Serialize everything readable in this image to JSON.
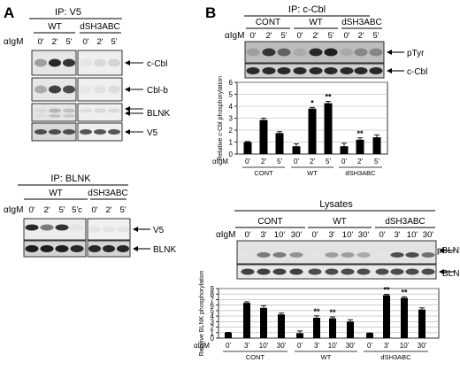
{
  "panel_a": {
    "letter": "A",
    "ip_v5": {
      "title": "IP: V5",
      "row_label": "αIgM",
      "groups": [
        {
          "label": "WT",
          "times": [
            "0'",
            "2'",
            "5'"
          ]
        },
        {
          "label": "dSH3ABC",
          "times": [
            "0'",
            "2'",
            "5'"
          ]
        }
      ],
      "blots": [
        {
          "label": "c-Cbl",
          "wt": [
            0.35,
            0.85,
            0.8
          ],
          "mut": [
            0.05,
            0.1,
            0.12
          ]
        },
        {
          "label": "Cbl-b",
          "wt": [
            0.3,
            0.75,
            0.7
          ],
          "mut": [
            0.04,
            0.06,
            0.08
          ]
        },
        {
          "label": "BLNK",
          "wt": [
            0.1,
            0.25,
            0.2
          ],
          "mut": [
            0.08,
            0.1,
            0.1
          ]
        },
        {
          "label": "V5",
          "wt": [
            0.7,
            0.7,
            0.7
          ],
          "mut": [
            0.65,
            0.65,
            0.65
          ]
        }
      ]
    },
    "ip_blnk": {
      "title": "IP: BLNK",
      "row_label": "αIgM",
      "groups": [
        {
          "label": "WT",
          "times": [
            "0'",
            "2'",
            "5'",
            "5'c"
          ]
        },
        {
          "label": "dSH3ABC",
          "times": [
            "0'",
            "2'",
            "5'"
          ]
        }
      ],
      "blots": [
        {
          "label": "V5",
          "wt": [
            0.85,
            0.5,
            0.8,
            0.05
          ],
          "mut": [
            0.05,
            0.05,
            0.05
          ]
        },
        {
          "label": "BLNK",
          "wt": [
            0.9,
            0.9,
            0.9,
            0.85
          ],
          "mut": [
            0.85,
            0.85,
            0.85
          ]
        }
      ]
    }
  },
  "panel_b": {
    "letter": "B",
    "ip_ccbl": {
      "title": "IP: c-Cbl",
      "row_label": "αIgM",
      "groups": [
        {
          "label": "CONT",
          "times": [
            "0'",
            "2'",
            "5'"
          ]
        },
        {
          "label": "WT",
          "times": [
            "0'",
            "2'",
            "5'"
          ]
        },
        {
          "label": "dSH3ABC",
          "times": [
            "0'",
            "2'",
            "5'"
          ]
        }
      ],
      "blots": [
        {
          "label": "pTyr",
          "lanes": [
            0.35,
            0.8,
            0.6,
            0.3,
            0.85,
            0.9,
            0.3,
            0.45,
            0.45
          ]
        },
        {
          "label": "c-Cbl",
          "lanes": [
            0.85,
            0.85,
            0.85,
            0.85,
            0.85,
            0.85,
            0.85,
            0.85,
            0.85
          ]
        }
      ]
    },
    "lysates": {
      "title": "Lysates",
      "row_label": "αIgM",
      "groups": [
        {
          "label": "CONT",
          "times": [
            "0'",
            "3'",
            "10'",
            "30'"
          ]
        },
        {
          "label": "WT",
          "times": [
            "0'",
            "3'",
            "10'",
            "30'"
          ]
        },
        {
          "label": "dSH3ABC",
          "times": [
            "0'",
            "3'",
            "10'",
            "30'"
          ]
        }
      ],
      "blots": [
        {
          "label": "pBLNK",
          "lanes": [
            0.05,
            0.5,
            0.5,
            0.4,
            0.05,
            0.35,
            0.35,
            0.3,
            0.05,
            0.7,
            0.7,
            0.55
          ]
        },
        {
          "label": "BLNK",
          "lanes": [
            0.75,
            0.75,
            0.75,
            0.75,
            0.7,
            0.7,
            0.7,
            0.7,
            0.7,
            0.7,
            0.7,
            0.7
          ]
        }
      ]
    }
  },
  "chart_data": [
    {
      "type": "bar",
      "ylabel": "Relative c-Cbl phosphorylation",
      "ylim": [
        0,
        6
      ],
      "yticks": [
        0,
        1,
        2,
        3,
        4,
        5,
        6
      ],
      "x_row_label": "αIgM",
      "categories": [
        "0'",
        "2'",
        "5'",
        "0'",
        "2'",
        "5'",
        "0'",
        "2'",
        "5'"
      ],
      "groups": [
        "CONT",
        "WT",
        "dSH3ABC"
      ],
      "values": [
        1.0,
        2.85,
        1.75,
        0.65,
        3.8,
        4.25,
        0.65,
        1.2,
        1.4
      ],
      "errors": [
        0.05,
        0.15,
        0.12,
        0.2,
        0.1,
        0.15,
        0.25,
        0.15,
        0.2
      ],
      "significance": [
        "",
        "",
        "",
        "",
        "*",
        "**",
        "",
        "**",
        ""
      ],
      "grid": true
    },
    {
      "type": "bar",
      "ylabel": "Relative BLNK phosphorylation",
      "ylim": [
        0,
        9
      ],
      "yticks": [
        0,
        1,
        2,
        3,
        4,
        5,
        6,
        7,
        8,
        9
      ],
      "x_row_label": "αIgM",
      "categories": [
        "0'",
        "3'",
        "10'",
        "30'",
        "0'",
        "3'",
        "10'",
        "30'",
        "0'",
        "3'",
        "10'",
        "30'"
      ],
      "groups": [
        "CONT",
        "WT",
        "dSH3ABC"
      ],
      "values": [
        1.0,
        6.4,
        5.5,
        4.3,
        0.9,
        3.7,
        3.6,
        3.0,
        0.9,
        7.8,
        7.3,
        5.2
      ],
      "errors": [
        0.05,
        0.2,
        0.4,
        0.25,
        0.4,
        0.35,
        0.25,
        0.35,
        0.05,
        0.15,
        0.2,
        0.3
      ],
      "significance": [
        "",
        "",
        "",
        "",
        "",
        "**",
        "**",
        "",
        "",
        "**",
        "**",
        ""
      ],
      "grid": true
    }
  ]
}
